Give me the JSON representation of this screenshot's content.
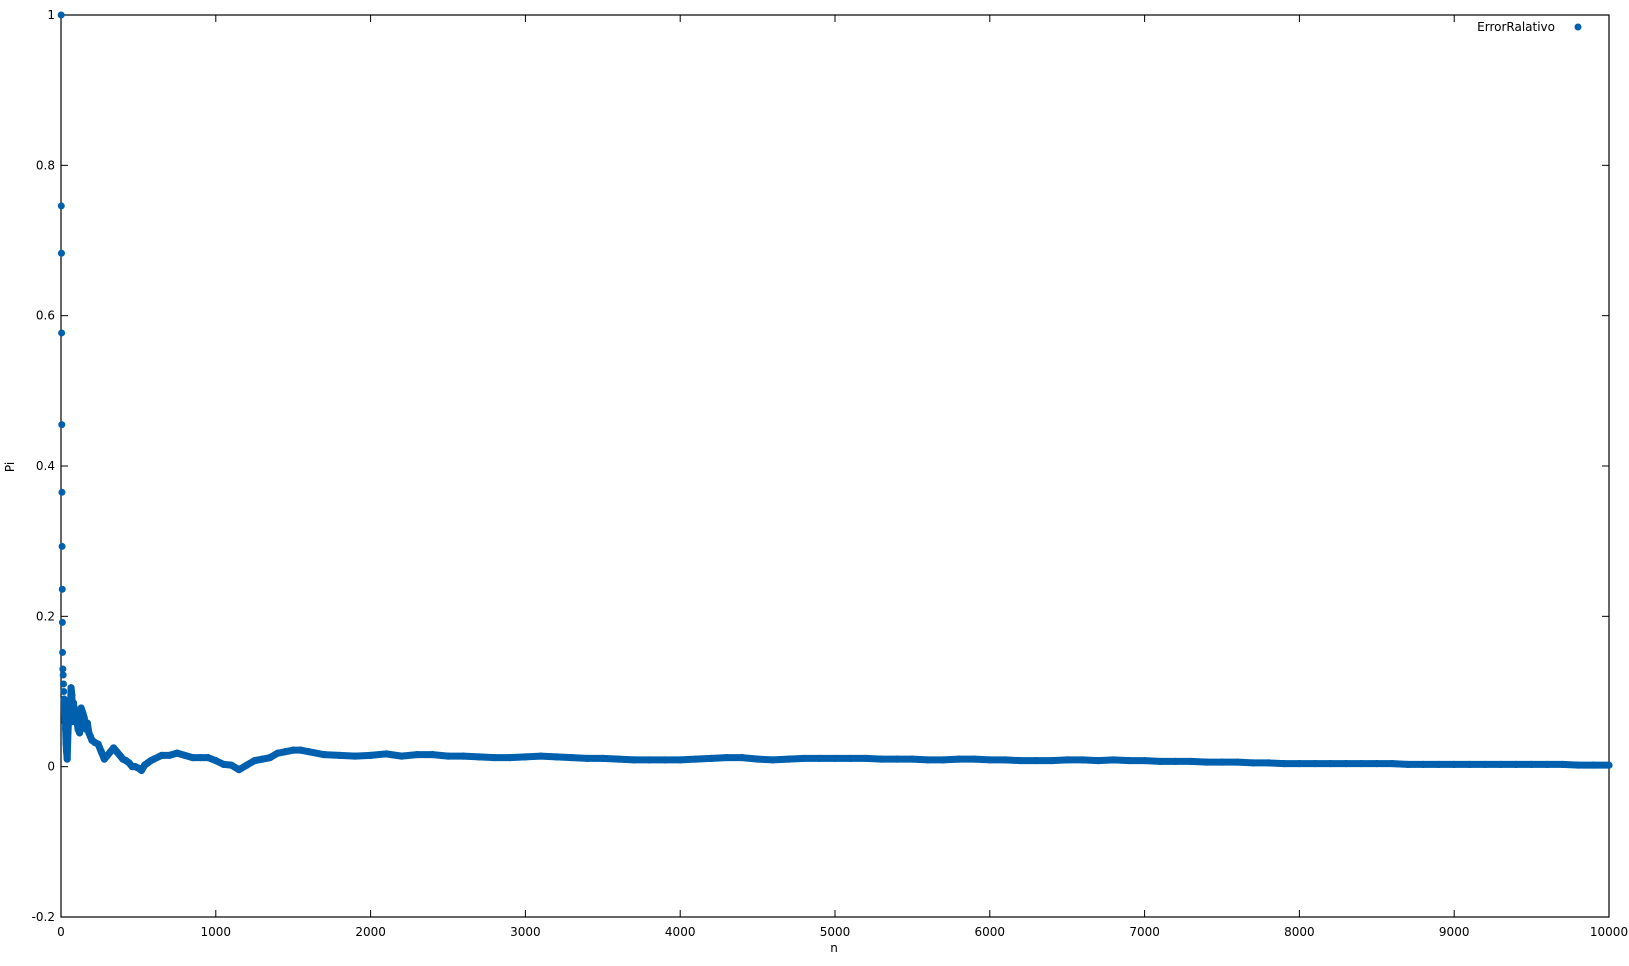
{
  "chart_data": {
    "type": "scatter",
    "title": "",
    "xlabel": "n",
    "ylabel": "Pi",
    "xlim": [
      0,
      10000
    ],
    "ylim": [
      -0.2,
      1
    ],
    "x_ticks": [
      0,
      1000,
      2000,
      3000,
      4000,
      5000,
      6000,
      7000,
      8000,
      9000,
      10000
    ],
    "x_tick_labels": [
      "0",
      "1000",
      "2000",
      "3000",
      "4000",
      "5000",
      "6000",
      "7000",
      "8000",
      "9000",
      "10000"
    ],
    "y_ticks": [
      -0.2,
      0,
      0.2,
      0.4,
      0.6,
      0.8,
      1
    ],
    "y_tick_labels": [
      "-0.2",
      "0",
      "0.2",
      "0.4",
      "0.6",
      "0.8",
      "1"
    ],
    "grid": false,
    "legend_position": "top-right",
    "series": [
      {
        "name": "ErrorRalativo",
        "color": "#0060ad",
        "marker": "circle",
        "points": [
          [
            1,
            1.0
          ],
          [
            2,
            0.746
          ],
          [
            3,
            0.683
          ],
          [
            4,
            0.577
          ],
          [
            5,
            0.455
          ],
          [
            6,
            0.365
          ],
          [
            7,
            0.293
          ],
          [
            8,
            0.236
          ],
          [
            9,
            0.192
          ],
          [
            10,
            0.152
          ],
          [
            12,
            0.13
          ],
          [
            14,
            0.122
          ],
          [
            16,
            0.11
          ],
          [
            18,
            0.1
          ],
          [
            20,
            0.09
          ],
          [
            22,
            0.075
          ],
          [
            25,
            0.06
          ],
          [
            28,
            0.085
          ],
          [
            30,
            0.05
          ],
          [
            33,
            0.03
          ],
          [
            36,
            0.02
          ],
          [
            40,
            0.01
          ],
          [
            45,
            0.045
          ],
          [
            50,
            0.065
          ],
          [
            55,
            0.08
          ],
          [
            60,
            0.07
          ],
          [
            65,
            0.105
          ],
          [
            70,
            0.095
          ],
          [
            75,
            0.06
          ],
          [
            80,
            0.085
          ],
          [
            90,
            0.07
          ],
          [
            100,
            0.065
          ],
          [
            110,
            0.05
          ],
          [
            120,
            0.045
          ],
          [
            130,
            0.078
          ],
          [
            140,
            0.072
          ],
          [
            150,
            0.065
          ],
          [
            160,
            0.05
          ],
          [
            170,
            0.058
          ],
          [
            180,
            0.045
          ],
          [
            190,
            0.04
          ],
          [
            200,
            0.035
          ],
          [
            220,
            0.032
          ],
          [
            240,
            0.03
          ],
          [
            260,
            0.02
          ],
          [
            280,
            0.01
          ],
          [
            300,
            0.015
          ],
          [
            320,
            0.02
          ],
          [
            340,
            0.025
          ],
          [
            360,
            0.02
          ],
          [
            380,
            0.015
          ],
          [
            400,
            0.01
          ],
          [
            420,
            0.008
          ],
          [
            440,
            0.005
          ],
          [
            460,
            0.0
          ],
          [
            480,
            0.0
          ],
          [
            500,
            -0.002
          ],
          [
            520,
            -0.005
          ],
          [
            540,
            0.002
          ],
          [
            560,
            0.005
          ],
          [
            580,
            0.008
          ],
          [
            600,
            0.01
          ],
          [
            650,
            0.015
          ],
          [
            700,
            0.015
          ],
          [
            750,
            0.018
          ],
          [
            800,
            0.015
          ],
          [
            850,
            0.012
          ],
          [
            900,
            0.012
          ],
          [
            950,
            0.012
          ],
          [
            1000,
            0.008
          ],
          [
            1050,
            0.003
          ],
          [
            1100,
            0.002
          ],
          [
            1150,
            -0.004
          ],
          [
            1200,
            0.002
          ],
          [
            1250,
            0.008
          ],
          [
            1300,
            0.01
          ],
          [
            1350,
            0.012
          ],
          [
            1400,
            0.018
          ],
          [
            1450,
            0.02
          ],
          [
            1500,
            0.022
          ],
          [
            1550,
            0.022
          ],
          [
            1600,
            0.02
          ],
          [
            1700,
            0.016
          ],
          [
            1800,
            0.015
          ],
          [
            1900,
            0.014
          ],
          [
            2000,
            0.015
          ],
          [
            2100,
            0.017
          ],
          [
            2200,
            0.014
          ],
          [
            2300,
            0.016
          ],
          [
            2400,
            0.016
          ],
          [
            2500,
            0.014
          ],
          [
            2600,
            0.014
          ],
          [
            2700,
            0.013
          ],
          [
            2800,
            0.012
          ],
          [
            2900,
            0.012
          ],
          [
            3000,
            0.013
          ],
          [
            3100,
            0.014
          ],
          [
            3200,
            0.013
          ],
          [
            3300,
            0.012
          ],
          [
            3400,
            0.011
          ],
          [
            3500,
            0.011
          ],
          [
            3600,
            0.01
          ],
          [
            3700,
            0.009
          ],
          [
            3800,
            0.009
          ],
          [
            3900,
            0.009
          ],
          [
            4000,
            0.009
          ],
          [
            4100,
            0.01
          ],
          [
            4200,
            0.011
          ],
          [
            4300,
            0.012
          ],
          [
            4400,
            0.012
          ],
          [
            4500,
            0.01
          ],
          [
            4600,
            0.009
          ],
          [
            4700,
            0.01
          ],
          [
            4800,
            0.011
          ],
          [
            4900,
            0.011
          ],
          [
            5000,
            0.011
          ],
          [
            5100,
            0.011
          ],
          [
            5200,
            0.011
          ],
          [
            5300,
            0.01
          ],
          [
            5400,
            0.01
          ],
          [
            5500,
            0.01
          ],
          [
            5600,
            0.009
          ],
          [
            5700,
            0.009
          ],
          [
            5800,
            0.01
          ],
          [
            5900,
            0.01
          ],
          [
            6000,
            0.009
          ],
          [
            6100,
            0.009
          ],
          [
            6200,
            0.008
          ],
          [
            6300,
            0.008
          ],
          [
            6400,
            0.008
          ],
          [
            6500,
            0.009
          ],
          [
            6600,
            0.009
          ],
          [
            6700,
            0.008
          ],
          [
            6800,
            0.009
          ],
          [
            6900,
            0.008
          ],
          [
            7000,
            0.008
          ],
          [
            7100,
            0.007
          ],
          [
            7200,
            0.007
          ],
          [
            7300,
            0.007
          ],
          [
            7400,
            0.006
          ],
          [
            7500,
            0.006
          ],
          [
            7600,
            0.006
          ],
          [
            7700,
            0.005
          ],
          [
            7800,
            0.005
          ],
          [
            7900,
            0.004
          ],
          [
            8000,
            0.004
          ],
          [
            8100,
            0.004
          ],
          [
            8200,
            0.004
          ],
          [
            8300,
            0.004
          ],
          [
            8400,
            0.004
          ],
          [
            8500,
            0.004
          ],
          [
            8600,
            0.004
          ],
          [
            8700,
            0.003
          ],
          [
            8800,
            0.003
          ],
          [
            8900,
            0.003
          ],
          [
            9000,
            0.003
          ],
          [
            9100,
            0.003
          ],
          [
            9200,
            0.003
          ],
          [
            9300,
            0.003
          ],
          [
            9400,
            0.003
          ],
          [
            9500,
            0.003
          ],
          [
            9600,
            0.003
          ],
          [
            9700,
            0.003
          ],
          [
            9800,
            0.002
          ],
          [
            9900,
            0.002
          ],
          [
            10000,
            0.002
          ]
        ]
      }
    ]
  }
}
